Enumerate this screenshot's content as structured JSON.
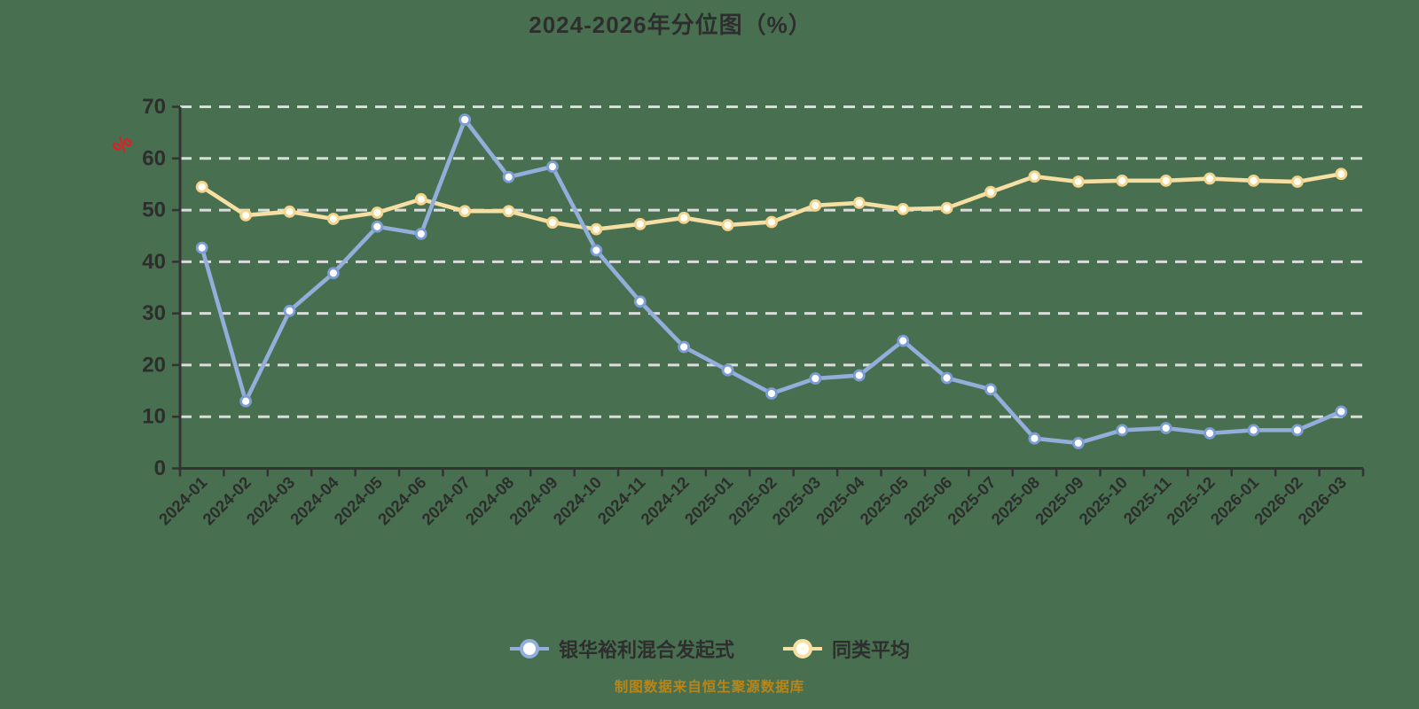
{
  "caption": "制图数据来自恒生聚源数据库",
  "colors": {
    "background": "#487050",
    "axis": "#333333",
    "grid": "#DCDCDC",
    "tick_label": "#2d2d2d",
    "title": "#2e2e2e",
    "caption": "#BA8518",
    "y_unit": "#E02020",
    "legend_text": "#2e2e2e"
  },
  "chart_data": {
    "type": "line",
    "title": "2024-2026年分位图（%）",
    "xlabel": "",
    "ylabel": "%",
    "y_unit": "%",
    "ylim": [
      0,
      70
    ],
    "y_ticks": [
      0,
      10,
      20,
      30,
      40,
      50,
      60,
      70
    ],
    "grid": true,
    "legend_position": "bottom",
    "categories": [
      "2024-01",
      "2024-02",
      "2024-03",
      "2024-04",
      "2024-05",
      "2024-06",
      "2024-07",
      "2024-08",
      "2024-09",
      "2024-10",
      "2024-11",
      "2024-12",
      "2025-01",
      "2025-02",
      "2025-03",
      "2025-04",
      "2025-05",
      "2025-06",
      "2025-07",
      "2025-08",
      "2025-09",
      "2025-10",
      "2025-11",
      "2025-12",
      "2026-01",
      "2026-02",
      "2026-03"
    ],
    "series": [
      {
        "name": "银华裕利混合发起式",
        "color": "#93AEDA",
        "marker_stroke": "#7C9DD4",
        "marker_fill": "#FDFDFF",
        "values": [
          42.7,
          13.0,
          30.5,
          37.8,
          46.8,
          45.4,
          67.5,
          56.4,
          58.4,
          42.2,
          32.3,
          23.5,
          19.0,
          14.5,
          17.4,
          18.0,
          24.7,
          17.5,
          15.3,
          5.8,
          4.9,
          7.4,
          7.8,
          6.8,
          7.4,
          7.4,
          11.0
        ]
      },
      {
        "name": "同类平均",
        "color": "#F6DFA3",
        "marker_stroke": "#F4D48C",
        "marker_fill": "#FFFDF4",
        "values": [
          54.5,
          49.0,
          49.7,
          48.3,
          49.5,
          52.1,
          49.8,
          49.8,
          47.6,
          46.3,
          47.3,
          48.5,
          47.1,
          47.7,
          50.9,
          51.4,
          50.2,
          50.4,
          53.5,
          56.5,
          55.5,
          55.7,
          55.7,
          56.1,
          55.7,
          55.5,
          57.0
        ]
      }
    ]
  }
}
